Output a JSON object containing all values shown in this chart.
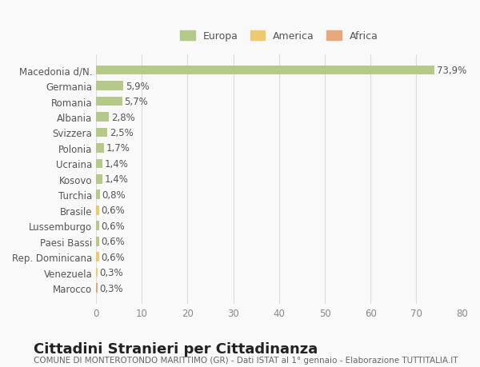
{
  "categories": [
    "Marocco",
    "Venezuela",
    "Rep. Dominicana",
    "Paesi Bassi",
    "Lussemburgo",
    "Brasile",
    "Turchia",
    "Kosovo",
    "Ucraina",
    "Polonia",
    "Svizzera",
    "Albania",
    "Romania",
    "Germania",
    "Macedonia d/N."
  ],
  "values": [
    0.3,
    0.3,
    0.6,
    0.6,
    0.6,
    0.6,
    0.8,
    1.4,
    1.4,
    1.7,
    2.5,
    2.8,
    5.7,
    5.9,
    73.9
  ],
  "labels": [
    "0,3%",
    "0,3%",
    "0,6%",
    "0,6%",
    "0,6%",
    "0,6%",
    "0,8%",
    "1,4%",
    "1,4%",
    "1,7%",
    "2,5%",
    "2,8%",
    "5,7%",
    "5,9%",
    "73,9%"
  ],
  "colors": [
    "#e8a87c",
    "#f0c96e",
    "#f0c96e",
    "#b5c98a",
    "#b5c98a",
    "#f0c96e",
    "#b5c98a",
    "#b5c98a",
    "#b5c98a",
    "#b5c98a",
    "#b5c98a",
    "#b5c98a",
    "#b5c98a",
    "#b5c98a",
    "#b5c98a"
  ],
  "legend_items": [
    {
      "label": "Europa",
      "color": "#b5c98a"
    },
    {
      "label": "America",
      "color": "#f0c96e"
    },
    {
      "label": "Africa",
      "color": "#e8a87c"
    }
  ],
  "xlim": [
    0,
    80
  ],
  "xticks": [
    0,
    10,
    20,
    30,
    40,
    50,
    60,
    70,
    80
  ],
  "title": "Cittadini Stranieri per Cittadinanza",
  "subtitle": "COMUNE DI MONTEROTONDO MARITTIMO (GR) - Dati ISTAT al 1° gennaio - Elaborazione TUTTITALIA.IT",
  "bg_color": "#f9f9f9",
  "grid_color": "#dddddd",
  "bar_height": 0.6,
  "label_fontsize": 8.5,
  "tick_fontsize": 8.5,
  "title_fontsize": 13,
  "subtitle_fontsize": 7.5
}
